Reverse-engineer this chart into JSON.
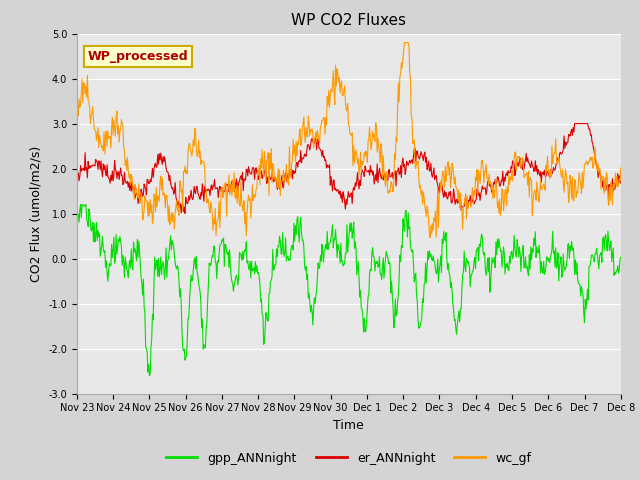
{
  "title": "WP CO2 Fluxes",
  "xlabel": "Time",
  "ylabel_str": "CO2 Flux (umol/m2/s)",
  "ylim": [
    -3.0,
    5.0
  ],
  "yticks": [
    -3.0,
    -2.0,
    -1.0,
    0.0,
    1.0,
    2.0,
    3.0,
    4.0,
    5.0
  ],
  "ytick_labels": [
    "-3.0",
    "-2.0",
    "-1.0",
    "0.0",
    "1.0",
    "2.0",
    "3.0",
    "4.0",
    "5.0"
  ],
  "fig_bg_color": "#d4d4d4",
  "plot_bg_color": "#e8e8e8",
  "grid_color": "#ffffff",
  "line_colors": {
    "gpp": "#00dd00",
    "er": "#dd0000",
    "wc": "#ff9900"
  },
  "legend_labels": [
    "gpp_ANNnight",
    "er_ANNnight",
    "wc_gf"
  ],
  "annotation_text": "WP_processed",
  "annotation_color": "#aa0000",
  "annotation_bg": "#ffffcc",
  "annotation_border": "#ccaa00",
  "n_points": 720,
  "x_start_day": 327,
  "x_end_day": 342,
  "xtick_days": [
    327,
    328,
    329,
    330,
    331,
    332,
    333,
    334,
    335,
    336,
    337,
    338,
    339,
    340,
    341,
    342
  ],
  "xtick_labels": [
    "Nov 23",
    "Nov 24",
    "Nov 25",
    "Nov 26",
    "Nov 27",
    "Nov 28",
    "Nov 29",
    "Nov 30",
    "Dec 1",
    "Dec 2",
    "Dec 3",
    "Dec 4",
    "Dec 5",
    "Dec 6",
    "Dec 7",
    "Dec 8"
  ],
  "title_fontsize": 11,
  "axis_fontsize": 9,
  "tick_fontsize": 7,
  "legend_fontsize": 9,
  "line_width": 0.8
}
